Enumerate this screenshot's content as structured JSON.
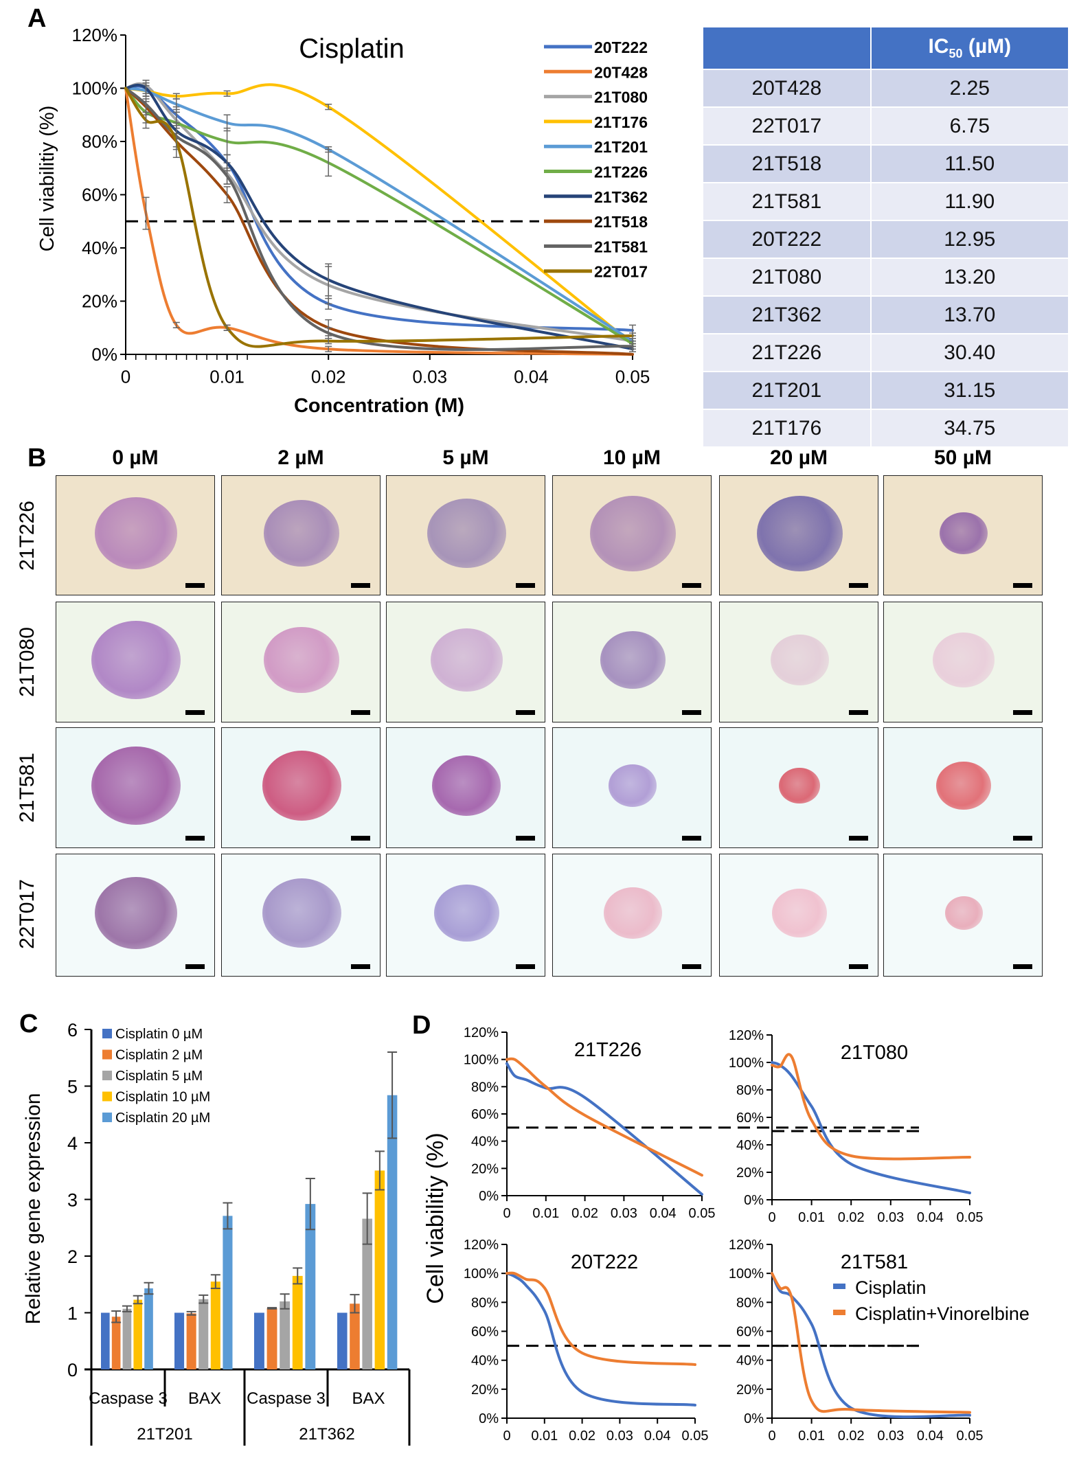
{
  "panel_letters": [
    "A",
    "B",
    "C",
    "D"
  ],
  "table": {
    "headers": [
      "",
      "IC50 (µM)"
    ],
    "header_main": "IC",
    "header_sub": "50",
    "header_unit": " (µM)",
    "rows": [
      [
        "20T428",
        "2.25"
      ],
      [
        "22T017",
        "6.75"
      ],
      [
        "21T518",
        "11.50"
      ],
      [
        "21T581",
        "11.90"
      ],
      [
        "20T222",
        "12.95"
      ],
      [
        "21T080",
        "13.20"
      ],
      [
        "21T362",
        "13.70"
      ],
      [
        "21T226",
        "30.40"
      ],
      [
        "21T201",
        "31.15"
      ],
      [
        "21T176",
        "34.75"
      ]
    ]
  },
  "panel_b": {
    "columns": [
      "0 µM",
      "2 µM",
      "5 µM",
      "10 µM",
      "20 µM",
      "50 µM"
    ],
    "rows": [
      "21T226",
      "21T080",
      "21T581",
      "22T017"
    ]
  },
  "chart_data": [
    {
      "type": "line",
      "title": "Cisplatin",
      "xlabel": "Concentration (M)",
      "ylabel": "Cell viabilitiy (%)",
      "xlim": [
        0,
        0.05
      ],
      "ylim": [
        0,
        120
      ],
      "xticks": [
        "0",
        "0.01",
        "0.02",
        "0.03",
        "0.04",
        "0.05"
      ],
      "yticks": [
        "0%",
        "20%",
        "40%",
        "60%",
        "80%",
        "100%",
        "120%"
      ],
      "reference_line": 50,
      "legend": "right",
      "x": [
        0,
        0.002,
        0.005,
        0.01,
        0.02,
        0.05
      ],
      "series": [
        {
          "name": "20T222",
          "color": "#4472c4",
          "values": [
            100,
            100,
            90,
            72,
            19,
            9
          ],
          "err": [
            0,
            2,
            3,
            3,
            2,
            2
          ]
        },
        {
          "name": "20T428",
          "color": "#ed7d31",
          "values": [
            100,
            53,
            11,
            10,
            2,
            0
          ],
          "err": [
            0,
            6,
            1,
            1,
            1,
            0
          ]
        },
        {
          "name": "21T080",
          "color": "#a5a5a5",
          "values": [
            100,
            101,
            88,
            68,
            26,
            5
          ],
          "err": [
            0,
            2,
            3,
            4,
            7,
            1
          ]
        },
        {
          "name": "21T176",
          "color": "#ffc000",
          "values": [
            100,
            99,
            97,
            98,
            93,
            4
          ],
          "err": [
            0,
            2,
            1,
            1,
            1,
            1
          ]
        },
        {
          "name": "21T201",
          "color": "#5b9bd5",
          "values": [
            100,
            99,
            94,
            87,
            77,
            5
          ],
          "err": [
            0,
            2,
            2,
            3,
            1,
            1
          ]
        },
        {
          "name": "21T226",
          "color": "#70ad47",
          "values": [
            100,
            91,
            87,
            80,
            72,
            4
          ],
          "err": [
            0,
            4,
            4,
            5,
            5,
            1
          ]
        },
        {
          "name": "21T362",
          "color": "#264478",
          "values": [
            100,
            100,
            84,
            72,
            28,
            2
          ],
          "err": [
            0,
            2,
            3,
            3,
            6,
            1
          ]
        },
        {
          "name": "21T518",
          "color": "#9e480e",
          "values": [
            100,
            93,
            80,
            60,
            10,
            0
          ],
          "err": [
            0,
            3,
            3,
            3,
            3,
            0
          ]
        },
        {
          "name": "21T581",
          "color": "#636363",
          "values": [
            100,
            94,
            82,
            67,
            8,
            3
          ],
          "err": [
            0,
            3,
            4,
            3,
            2,
            1
          ]
        },
        {
          "name": "22T017",
          "color": "#997300",
          "values": [
            100,
            88,
            80,
            10,
            5,
            7
          ],
          "err": [
            0,
            3,
            6,
            1,
            1,
            1
          ]
        }
      ]
    },
    {
      "type": "bar",
      "ylabel": "Relative gene expression",
      "ylim": [
        0,
        6
      ],
      "yticks": [
        "0",
        "1",
        "2",
        "3",
        "4",
        "5",
        "6"
      ],
      "legend": "top-left",
      "categories": [
        "Caspase 3",
        "BAX",
        "Caspase 3",
        "BAX"
      ],
      "groups": [
        "21T201",
        "21T362"
      ],
      "series": [
        {
          "name": "Cisplatin 0 µM",
          "color": "#4472c4",
          "values": [
            1,
            1,
            1,
            1
          ],
          "err": [
            0,
            0,
            0,
            0
          ]
        },
        {
          "name": "Cisplatin 2 µM",
          "color": "#ed7d31",
          "values": [
            0.93,
            0.99,
            1.08,
            1.16
          ],
          "err": [
            0.1,
            0.03,
            0.01,
            0.16
          ]
        },
        {
          "name": "Cisplatin 5 µM",
          "color": "#a5a5a5",
          "values": [
            1.07,
            1.24,
            1.2,
            2.66
          ],
          "err": [
            0.05,
            0.07,
            0.13,
            0.45
          ]
        },
        {
          "name": "Cisplatin 10 µM",
          "color": "#ffc000",
          "values": [
            1.23,
            1.55,
            1.65,
            3.51
          ],
          "err": [
            0.07,
            0.12,
            0.14,
            0.34
          ]
        },
        {
          "name": "Cisplatin 20 µM",
          "color": "#5b9bd5",
          "values": [
            1.43,
            2.71,
            2.92,
            4.84
          ],
          "err": [
            0.1,
            0.23,
            0.45,
            0.76
          ]
        }
      ]
    },
    {
      "type": "line",
      "ylabel": "Cell viabilitiy (%)",
      "xlim": [
        0,
        0.05
      ],
      "ylim": [
        0,
        120
      ],
      "reference_line": 50,
      "xticks": [
        "0",
        "0.01",
        "0.02",
        "0.03",
        "0.04",
        "0.05"
      ],
      "yticks": [
        "0%",
        "20%",
        "40%",
        "60%",
        "80%",
        "100%",
        "120%"
      ],
      "legend": "bottom-right",
      "x": [
        0,
        0.002,
        0.005,
        0.01,
        0.02,
        0.05
      ],
      "legend_entries": [
        {
          "name": "Cisplatin",
          "color": "#4472c4"
        },
        {
          "name": "Cisplatin+Vinorelbine",
          "color": "#ed7d31"
        }
      ],
      "subplots": [
        {
          "title": "21T226",
          "series": [
            {
              "name": "Cisplatin",
              "values": [
                97,
                88,
                85,
                79,
                72,
                1
              ]
            },
            {
              "name": "Cisplatin+Vinorelbine",
              "values": [
                100,
                100,
                93,
                80,
                59,
                15
              ]
            }
          ]
        },
        {
          "title": "21T080",
          "series": [
            {
              "name": "Cisplatin",
              "values": [
                100,
                98,
                90,
                68,
                26,
                5
              ]
            },
            {
              "name": "Cisplatin+Vinorelbine",
              "values": [
                98,
                97,
                104,
                58,
                32,
                31
              ]
            }
          ]
        },
        {
          "title": "20T222",
          "series": [
            {
              "name": "Cisplatin",
              "values": [
                100,
                98,
                92,
                74,
                18,
                9
              ]
            },
            {
              "name": "Cisplatin+Vinorelbine",
              "values": [
                100,
                100,
                96,
                90,
                45,
                37
              ]
            }
          ]
        },
        {
          "title": "21T581",
          "series": [
            {
              "name": "Cisplatin",
              "values": [
                100,
                88,
                84,
                65,
                7,
                2
              ]
            },
            {
              "name": "Cisplatin+Vinorelbine",
              "values": [
                100,
                90,
                83,
                12,
                6,
                4
              ]
            }
          ]
        }
      ]
    }
  ]
}
